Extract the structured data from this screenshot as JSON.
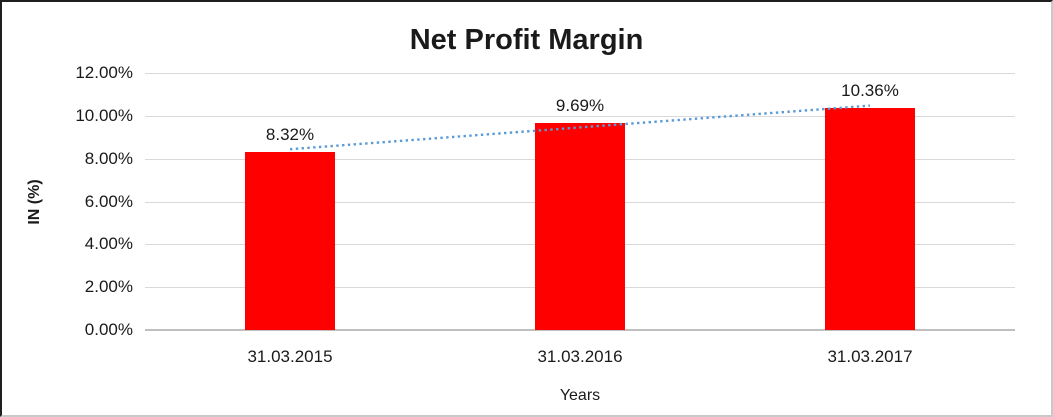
{
  "chart_data": {
    "type": "bar",
    "title": "Net Profit Margin",
    "xlabel": "Years",
    "ylabel": "IN (%)",
    "categories": [
      "31.03.2015",
      "31.03.2016",
      "31.03.2017"
    ],
    "values": [
      8.32,
      9.69,
      10.36
    ],
    "data_labels": [
      "8.32%",
      "9.69%",
      "10.36%"
    ],
    "yticks": [
      "0.00%",
      "2.00%",
      "4.00%",
      "6.00%",
      "8.00%",
      "10.00%",
      "12.00%"
    ],
    "ylim": [
      0,
      12
    ],
    "ytick_step": 2,
    "grid": true,
    "legend": "none",
    "bar_color": "#ff0000",
    "gridline_color": "#d9d9d9",
    "axis_line_color": "#bfbfbf",
    "trendline": {
      "type": "linear",
      "style": "dotted",
      "color": "#5b9bd5",
      "values_pct": [
        8.44,
        9.46,
        10.48
      ]
    }
  }
}
